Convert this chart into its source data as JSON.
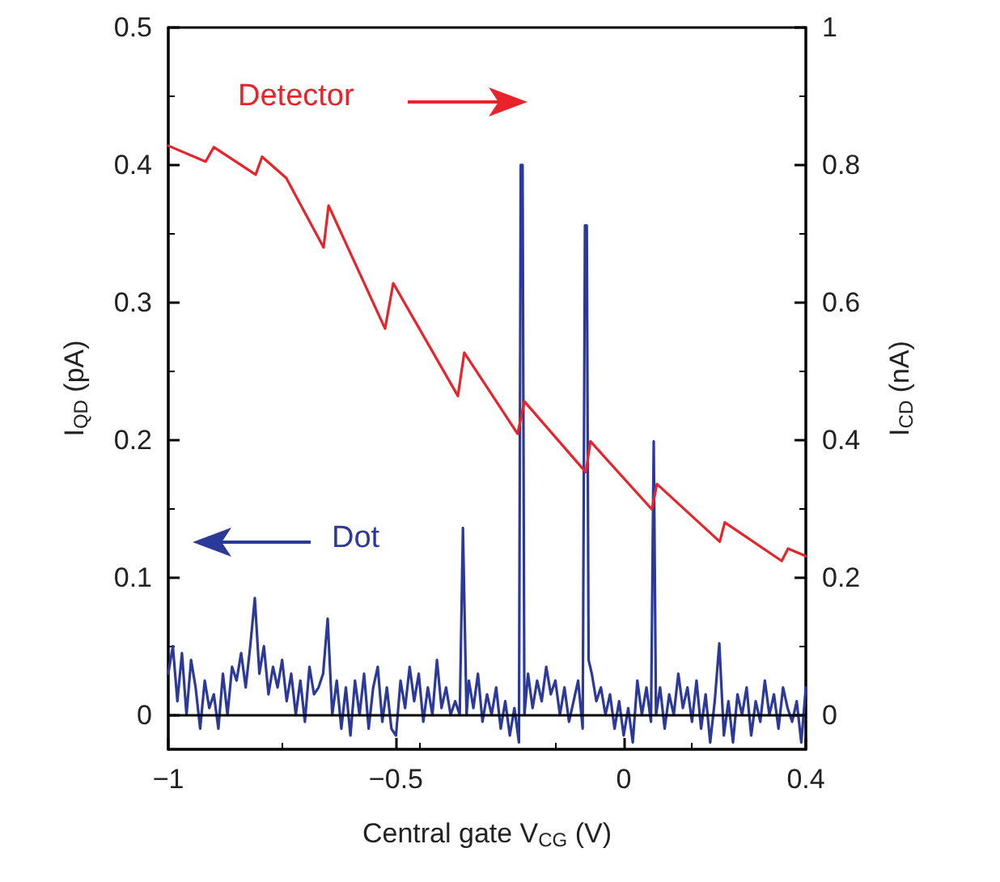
{
  "chart_data": {
    "type": "line",
    "xlabel": "Central gate V$_{CG}$ (V)",
    "ylabel": "I$_{QD}$ (pA)",
    "y2label": "I$_{CD}$ (nA)",
    "annotations": [
      "Detector",
      "Dot"
    ],
    "series": [
      {
        "name": null,
        "color": "#2b3a9a",
        "x": [
          -1.0,
          -0.99,
          -0.98,
          -0.97,
          -0.96,
          -0.95,
          -0.94,
          -0.93,
          -0.92,
          -0.91,
          -0.9,
          -0.89,
          -0.88,
          -0.87,
          -0.86,
          -0.85,
          -0.84,
          -0.83,
          -0.82,
          -0.81,
          -0.8,
          -0.79,
          -0.78,
          -0.77,
          -0.76,
          -0.75,
          -0.74,
          -0.73,
          -0.72,
          -0.71,
          -0.7,
          -0.69,
          -0.68,
          -0.67,
          -0.66,
          -0.65,
          -0.64,
          -0.63,
          -0.62,
          -0.61,
          -0.6,
          -0.59,
          -0.58,
          -0.57,
          -0.56,
          -0.55,
          -0.54,
          -0.53,
          -0.52,
          -0.51,
          -0.5,
          -0.49,
          -0.48,
          -0.47,
          -0.46,
          -0.45,
          -0.44,
          -0.43,
          -0.42,
          -0.41,
          -0.4,
          -0.39,
          -0.38,
          -0.37,
          -0.36,
          -0.353,
          -0.345,
          -0.34,
          -0.33,
          -0.32,
          -0.31,
          -0.3,
          -0.29,
          -0.28,
          -0.27,
          -0.26,
          -0.25,
          -0.24,
          -0.23,
          -0.226,
          -0.222,
          -0.218,
          -0.21,
          -0.2,
          -0.19,
          -0.18,
          -0.17,
          -0.16,
          -0.15,
          -0.14,
          -0.13,
          -0.12,
          -0.11,
          -0.1,
          -0.09,
          -0.085,
          -0.081,
          -0.077,
          -0.07,
          -0.06,
          -0.05,
          -0.04,
          -0.03,
          -0.02,
          -0.01,
          0.0,
          0.01,
          0.02,
          0.03,
          0.04,
          0.05,
          0.06,
          0.066,
          0.071,
          0.08,
          0.09,
          0.1,
          0.11,
          0.12,
          0.13,
          0.14,
          0.15,
          0.16,
          0.17,
          0.18,
          0.19,
          0.2,
          0.21,
          0.22,
          0.23,
          0.24,
          0.25,
          0.26,
          0.27,
          0.28,
          0.29,
          0.3,
          0.31,
          0.32,
          0.33,
          0.34,
          0.35,
          0.36,
          0.37,
          0.38,
          0.39,
          0.4
        ],
        "values": [
          0.03,
          0.05,
          0.01,
          0.045,
          0.0,
          0.04,
          0.02,
          -0.01,
          0.025,
          0.005,
          0.015,
          -0.01,
          0.03,
          0.0,
          0.035,
          0.025,
          0.045,
          0.02,
          0.05,
          0.085,
          0.03,
          0.05,
          0.015,
          0.035,
          0.02,
          0.04,
          0.01,
          0.03,
          0.0,
          0.025,
          -0.005,
          0.035,
          0.015,
          0.02,
          0.03,
          0.07,
          0.0,
          0.025,
          -0.01,
          0.02,
          -0.015,
          0.025,
          0.0,
          0.03,
          -0.01,
          0.02,
          0.035,
          -0.005,
          0.02,
          -0.01,
          -0.015,
          0.025,
          0.005,
          0.035,
          0.01,
          0.03,
          -0.005,
          0.02,
          0.0,
          0.04,
          0.005,
          0.02,
          0.0,
          0.01,
          0.0,
          0.136,
          0.0,
          0.025,
          0.005,
          0.03,
          -0.005,
          0.015,
          0.0,
          0.02,
          -0.01,
          0.01,
          -0.015,
          0.005,
          -0.02,
          0.4,
          0.4,
          0.0,
          0.03,
          0.005,
          0.025,
          0.01,
          0.035,
          0.015,
          0.025,
          0.0,
          0.02,
          -0.005,
          0.01,
          0.025,
          -0.01,
          0.356,
          0.356,
          0.04,
          0.03,
          0.01,
          0.02,
          0.0,
          0.015,
          -0.01,
          0.01,
          -0.015,
          0.005,
          -0.02,
          0.025,
          0.0,
          0.02,
          -0.005,
          0.199,
          0.0,
          0.02,
          -0.01,
          0.015,
          0.0,
          0.03,
          0.005,
          0.02,
          -0.005,
          0.025,
          -0.01,
          0.015,
          -0.02,
          0.01,
          0.052,
          -0.015,
          0.01,
          -0.02,
          0.015,
          0.0,
          0.02,
          -0.015,
          0.01,
          -0.005,
          0.025,
          0.0,
          0.015,
          -0.01,
          0.02,
          0.005,
          -0.005,
          0.01,
          -0.02,
          0.02
        ]
      },
      {
        "name": null,
        "color": "#e8232a",
        "axis": "y2",
        "x": [
          -1.0,
          -0.918,
          -0.9,
          -0.808,
          -0.794,
          -0.741,
          -0.659,
          -0.648,
          -0.524,
          -0.506,
          -0.364,
          -0.35,
          -0.233,
          -0.218,
          -0.083,
          -0.073,
          0.062,
          0.073,
          0.211,
          0.222,
          0.347,
          0.361,
          0.4
        ],
        "values": [
          0.828,
          0.805,
          0.826,
          0.786,
          0.812,
          0.781,
          0.68,
          0.741,
          0.562,
          0.628,
          0.464,
          0.527,
          0.409,
          0.456,
          0.353,
          0.398,
          0.299,
          0.336,
          0.252,
          0.28,
          0.224,
          0.242,
          0.231
        ]
      }
    ],
    "xlim": [
      -1,
      0.4
    ],
    "xticks": [
      -1,
      -0.5,
      0,
      0.4
    ],
    "ylim": [
      -0.025,
      0.5
    ],
    "yticks": [
      0,
      0.1,
      0.2,
      0.3,
      0.4,
      0.5
    ],
    "y2lim": [
      -0.05,
      1
    ],
    "y2ticks": [
      0,
      0.2,
      0.4,
      0.6,
      0.8,
      1
    ],
    "ref_lines": [
      {
        "axis": "y",
        "value": 0,
        "color": "#000000"
      }
    ],
    "grid": false,
    "marker": "none",
    "line_style": "solid"
  }
}
